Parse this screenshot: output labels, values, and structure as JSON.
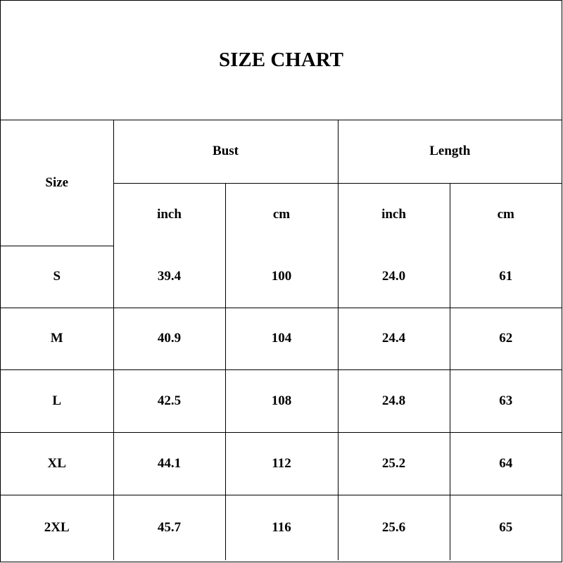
{
  "title": "SIZE CHART",
  "headers": {
    "size": "Size",
    "bust": "Bust",
    "length": "Length",
    "units": [
      "inch",
      "cm",
      "inch",
      "cm"
    ]
  },
  "rows": [
    {
      "size": "S",
      "bust_inch": "39.4",
      "bust_cm": "100",
      "length_inch": "24.0",
      "length_cm": "61"
    },
    {
      "size": "M",
      "bust_inch": "40.9",
      "bust_cm": "104",
      "length_inch": "24.4",
      "length_cm": "62"
    },
    {
      "size": "L",
      "bust_inch": "42.5",
      "bust_cm": "108",
      "length_inch": "24.8",
      "length_cm": "63"
    },
    {
      "size": "XL",
      "bust_inch": "44.1",
      "bust_cm": "112",
      "length_inch": "25.2",
      "length_cm": "64"
    },
    {
      "size": "2XL",
      "bust_inch": "45.7",
      "bust_cm": "116",
      "length_inch": "25.6",
      "length_cm": "65"
    }
  ]
}
